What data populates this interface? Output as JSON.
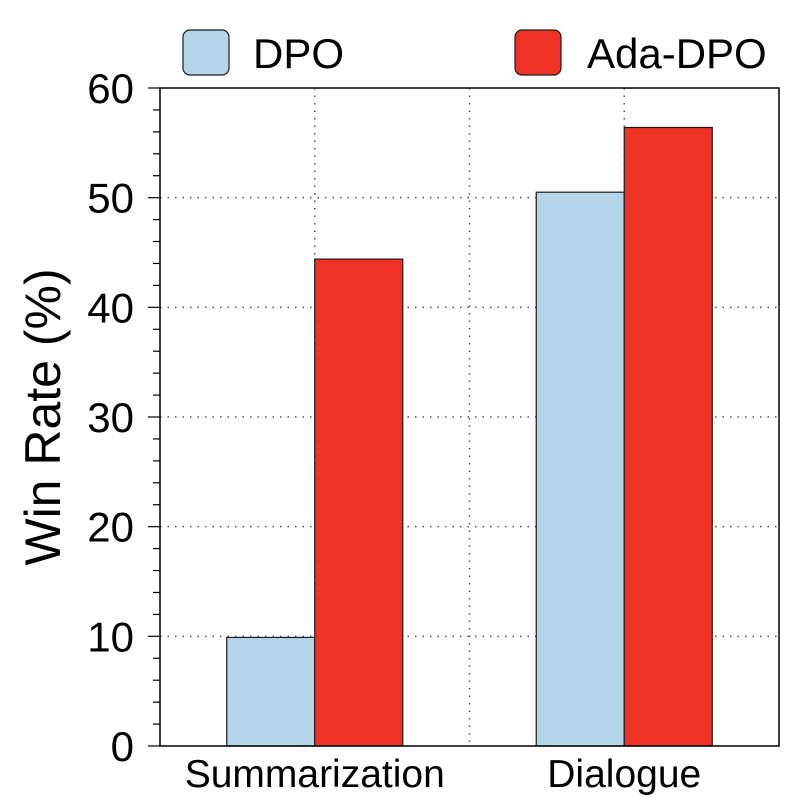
{
  "chart_data": {
    "type": "bar",
    "title": "",
    "xlabel": "",
    "ylabel": "Win Rate (%)",
    "categories": [
      "Summarization",
      "Dialogue"
    ],
    "series": [
      {
        "name": "DPO",
        "values": [
          9.9,
          50.5
        ],
        "color": "#b5d6e8"
      },
      {
        "name": "Ada-DPO",
        "values": [
          44.4,
          56.4
        ],
        "color": "#ee3226"
      }
    ],
    "ylim": [
      0,
      60
    ],
    "yticks": [
      0,
      10,
      20,
      30,
      40,
      50,
      60
    ],
    "grid": true,
    "legend_position": "top"
  }
}
